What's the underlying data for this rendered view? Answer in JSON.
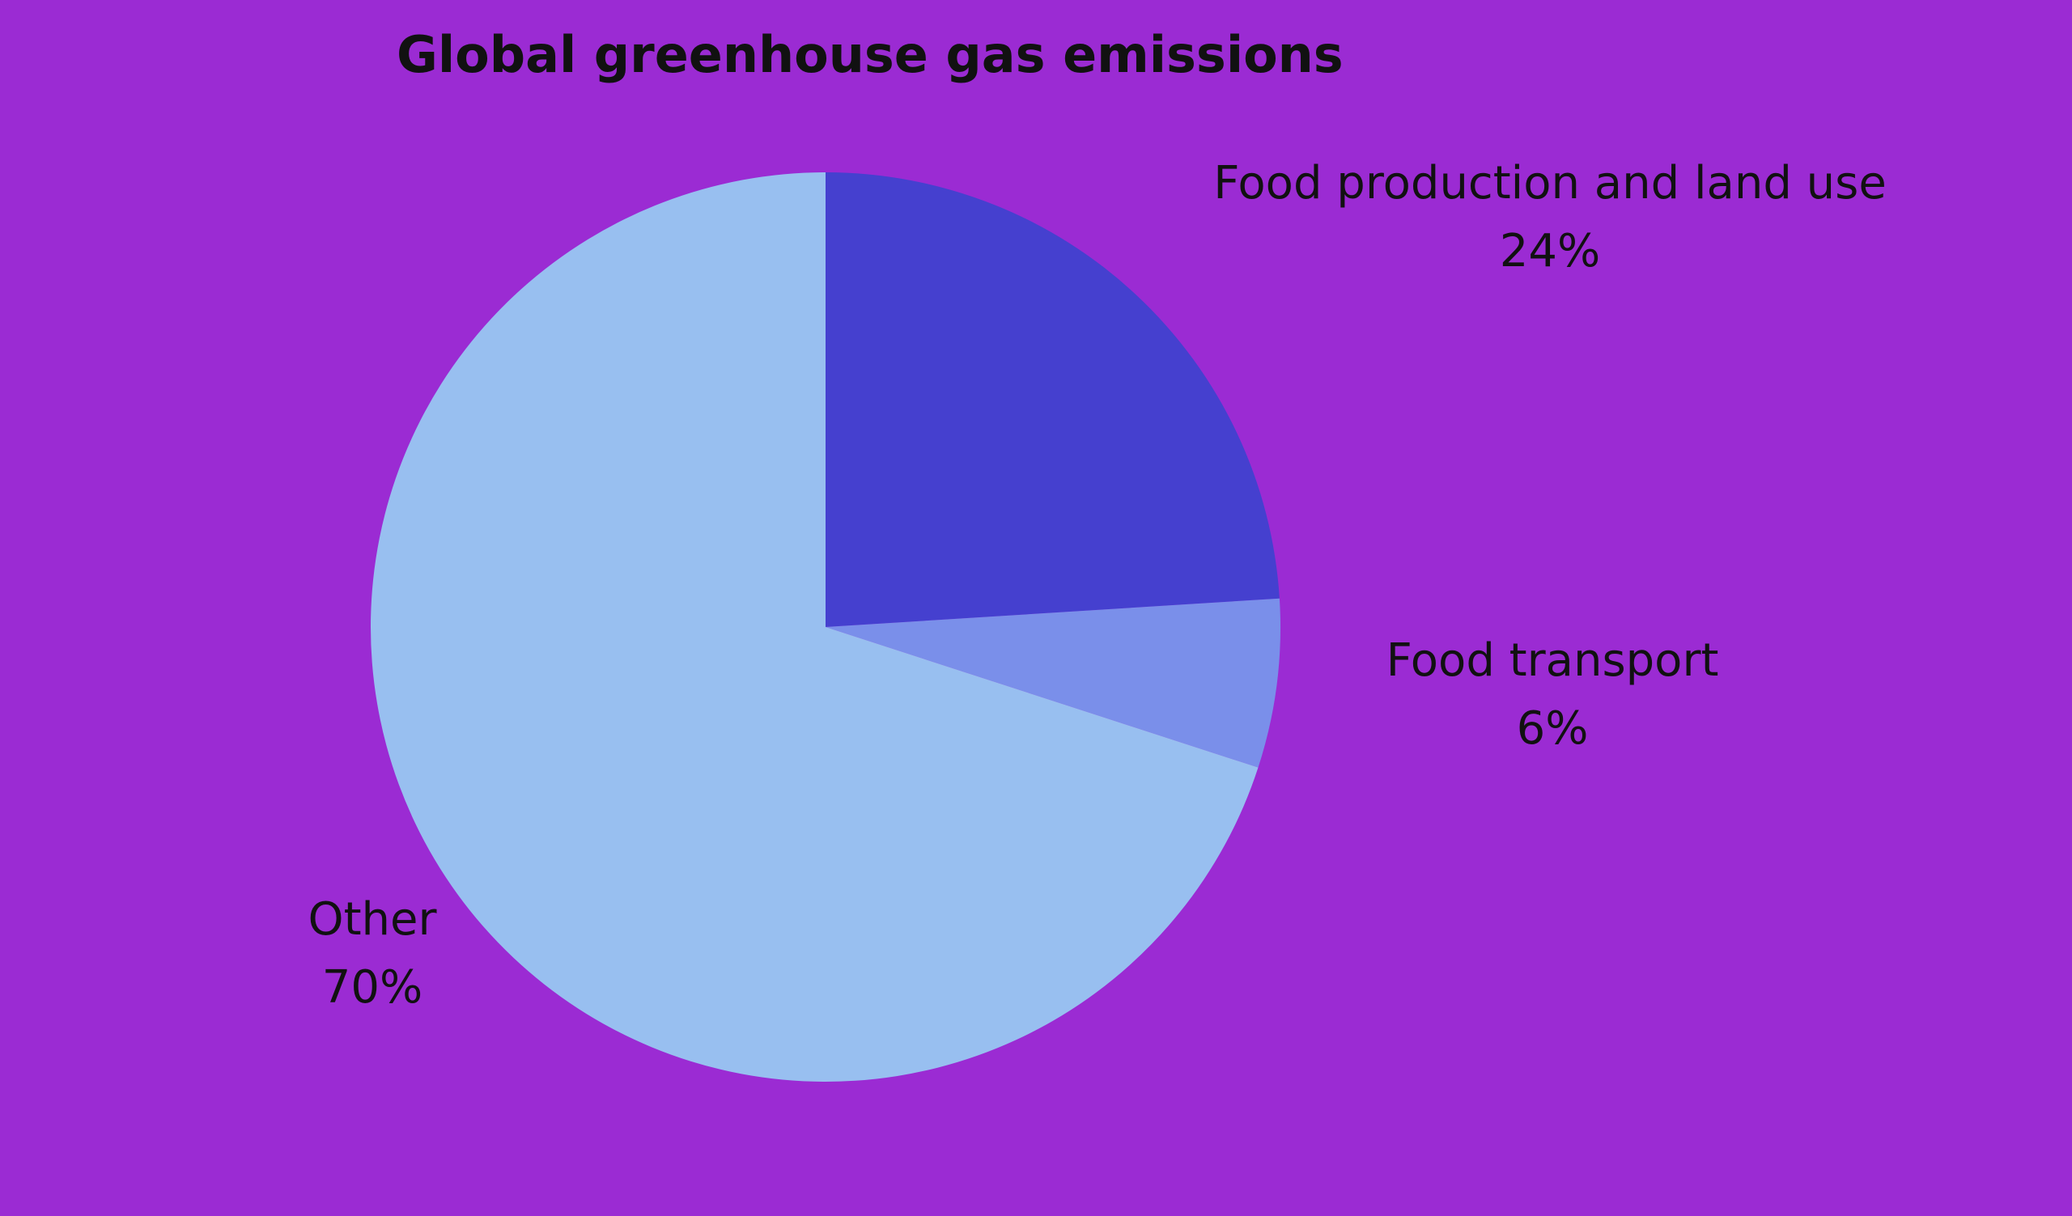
{
  "chart_data": {
    "type": "pie",
    "title": "Global greenhouse gas emissions",
    "categories": [
      "Food production and land use",
      "Food transport",
      "Other"
    ],
    "values": [
      24,
      6,
      70
    ],
    "value_labels": [
      "24%",
      "6%",
      "70%"
    ],
    "colors": [
      "#4540cf",
      "#7a8fea",
      "#98bff0"
    ]
  }
}
